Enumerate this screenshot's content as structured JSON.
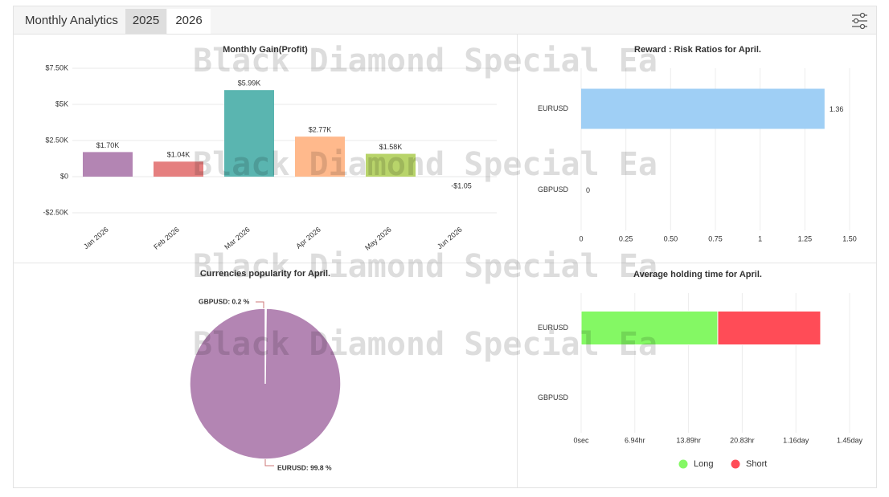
{
  "header": {
    "title": "Monthly Analytics",
    "tabs": [
      "2025",
      "2026"
    ],
    "watermark": "Black Diamond Special Ea"
  },
  "chart_data": [
    {
      "type": "bar",
      "title": "Monthly Gain(Profit)",
      "categories": [
        "Jan 2026",
        "Feb 2026",
        "Mar 2026",
        "Apr 2026",
        "May 2026",
        "Jun 2026"
      ],
      "values": [
        1700,
        1040,
        5990,
        2770,
        1580,
        -1.05
      ],
      "value_labels": [
        "$1.70K",
        "$1.04K",
        "$5.99K",
        "$2.77K",
        "$1.58K",
        "-$1.05"
      ],
      "colors": [
        "#b385b3",
        "#e57f7f",
        "#5ab5b0",
        "#ffb98c",
        "#b8d46a",
        "#7fb8e5"
      ],
      "ylim": [
        -2500,
        7500
      ],
      "yticks": [
        {
          "value": -2500,
          "label": "-$2.50K"
        },
        {
          "value": 0,
          "label": "$0"
        },
        {
          "value": 2500,
          "label": "$2.50K"
        },
        {
          "value": 5000,
          "label": "$5K"
        },
        {
          "value": 7500,
          "label": "$7.50K"
        }
      ],
      "grid": true
    },
    {
      "type": "hbar",
      "title": "Reward : Risk Ratios for April.",
      "categories": [
        "EURUSD",
        "GBPUSD"
      ],
      "values": [
        1.36,
        0
      ],
      "color": "#9fcff5",
      "xlim": [
        0,
        1.5
      ],
      "xticks": [
        0,
        0.25,
        {
          "value": 0.5,
          "label": "0.50"
        },
        0.75,
        1,
        1.25,
        {
          "value": 1.5,
          "label": "1.50"
        }
      ],
      "grid": true
    },
    {
      "type": "pie",
      "title": "Currencies popularity for April.",
      "values": [
        0.2,
        99.8
      ],
      "value_labels": [
        "GBPUSD: 0.2 %",
        "EURUSD: 99.8 %"
      ],
      "colors": [
        "#b385b3",
        "#b385b3"
      ]
    },
    {
      "type": "stacked_hbar",
      "title": "Average holding time for April.",
      "categories": [
        "EURUSD",
        "GBPUSD"
      ],
      "series": [
        {
          "name": "Long",
          "color": "#84f864",
          "values": [
            63600,
            0
          ]
        },
        {
          "name": "Short",
          "color": "#ff4c57",
          "values": [
            47900,
            0
          ]
        }
      ],
      "xlim": [
        0,
        125000
      ],
      "xticks": [
        {
          "value": 0,
          "label": "0sec"
        },
        {
          "value": 25000,
          "label": "6.94hr"
        },
        {
          "value": 50000,
          "label": "13.89hr"
        },
        {
          "value": 75000,
          "label": "20.83hr"
        },
        {
          "value": 100000,
          "label": "1.16day"
        },
        {
          "value": 125000,
          "label": "1.45day"
        }
      ],
      "grid": true,
      "legend": "bottom"
    }
  ]
}
